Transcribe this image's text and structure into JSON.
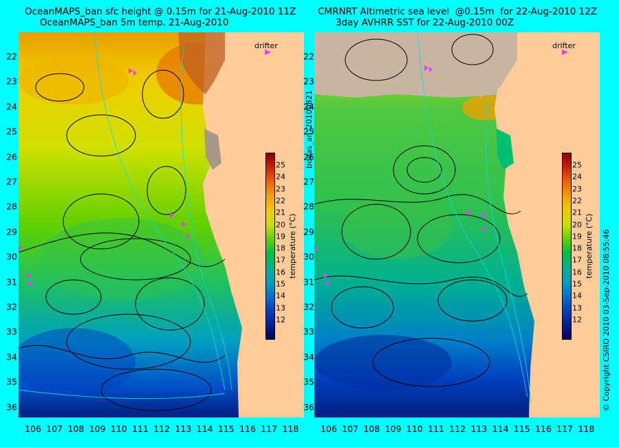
{
  "titles": {
    "left_line1": "OceanMAPS_ban sfc height @ 0.15m for 21-Aug-2010 11Z",
    "left_line2": "OceanMAPS_ban 5m temp. 21-Aug-2010",
    "right_line1": "CMRNRT Altimetric sea level  @0.15m  for 22-Aug-2010 12Z",
    "right_line2": "3day AVHRR SST for 22-Aug-2010 00Z"
  },
  "legend": {
    "drifter": "drifter",
    "drifter_color": "#ff33ff"
  },
  "colorbar": {
    "label": "temperature (°C)",
    "ticks": [
      "25",
      "24",
      "23",
      "22",
      "21",
      "20",
      "19",
      "18",
      "17",
      "16",
      "15",
      "14",
      "13",
      "12"
    ],
    "colors": [
      "#8b0000",
      "#cc2200",
      "#ee6600",
      "#f0a000",
      "#f0cc00",
      "#c8e000",
      "#60d000",
      "#00c040",
      "#00b090",
      "#00a0c0",
      "#0070d0",
      "#0040c0",
      "#002090",
      "#000060"
    ]
  },
  "side_text": {
    "file_id": "bodas_an_20100821",
    "copyright": "© Copyright CSIRO 2010   03-Sep-2010 08:55:46"
  },
  "axes": {
    "lon_ticks": [
      "106",
      "107",
      "108",
      "109",
      "110",
      "111",
      "112",
      "113",
      "114",
      "115",
      "116",
      "117",
      "118"
    ],
    "lat_ticks": [
      "22",
      "23",
      "24",
      "25",
      "26",
      "27",
      "28",
      "29",
      "30",
      "31",
      "32",
      "33",
      "34",
      "35",
      "36"
    ]
  },
  "colors": {
    "background": "#00ffff",
    "land": "#ffcc99",
    "cloud": "#c8b4a0"
  }
}
